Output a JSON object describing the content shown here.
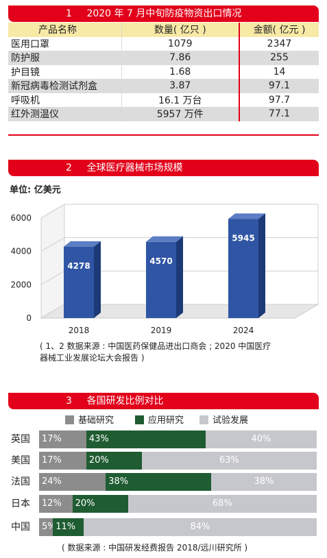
{
  "colors": {
    "accent": "#e2001a",
    "header_row": "#f7e9a6",
    "bar": "#2f55a4",
    "basic": "#8c8c8c",
    "applied": "#1f5c32",
    "experimental": "#c6c7cc"
  },
  "section1": {
    "num": "1",
    "title": "2020 年 7 月中旬防疫物资出口情况",
    "columns": [
      "产品名称",
      "数量( 亿只 )",
      "金额( 亿元 )"
    ],
    "rows": [
      {
        "name": "医用口罩",
        "qty": "1079",
        "amount": "2347"
      },
      {
        "name": "防护服",
        "qty": "7.86",
        "amount": "255"
      },
      {
        "name": "护目镜",
        "qty": "1.68",
        "amount": "14"
      },
      {
        "name": "新冠病毒检测试剂盒",
        "qty": "3.87",
        "amount": "97.1"
      },
      {
        "name": "呼吸机",
        "qty": "16.1 万台",
        "amount": "97.7"
      },
      {
        "name": "红外测温仪",
        "qty": "5957 万件",
        "amount": "77.1"
      }
    ]
  },
  "section2": {
    "num": "2",
    "title": "全球医疗器械市场规模",
    "unit": "单位: 亿美元",
    "source_line1": "( 1、2 数据来源 : 中国医药保健品进出口商会 ; 2020 中国医疗",
    "source_line2": "器械工业发展论坛大会报告 )"
  },
  "section3": {
    "num": "3",
    "title": "各国研发比例对比",
    "source": "( 数据来源 : 中国研发经费报告 2018/远川研究所 )"
  },
  "chart_data": [
    {
      "type": "bar",
      "categories": [
        "2018",
        "2019",
        "2024"
      ],
      "values": [
        4278,
        4570,
        5945
      ],
      "ylabel": "单位: 亿美元",
      "yticks": [
        0,
        2000,
        4000,
        6000
      ],
      "ylim": [
        0,
        6000
      ],
      "grid": true,
      "data_labels": true
    },
    {
      "type": "bar",
      "orientation": "horizontal-stacked-100",
      "categories": [
        "英国",
        "美国",
        "法国",
        "日本",
        "中国"
      ],
      "series": [
        {
          "name": "基础研究",
          "values": [
            17,
            17,
            24,
            12,
            5
          ],
          "labels": [
            "17%",
            "17%",
            "24%",
            "12%",
            "5%"
          ]
        },
        {
          "name": "应用研究",
          "values": [
            43,
            20,
            38,
            20,
            11
          ],
          "labels": [
            "43%",
            "20%",
            "38%",
            "20%",
            "11%"
          ]
        },
        {
          "name": "试验发展",
          "values": [
            40,
            63,
            38,
            68,
            84
          ],
          "labels": [
            "40%",
            "63%",
            "38%",
            "68%",
            "84%"
          ]
        }
      ],
      "legend": "top"
    }
  ]
}
